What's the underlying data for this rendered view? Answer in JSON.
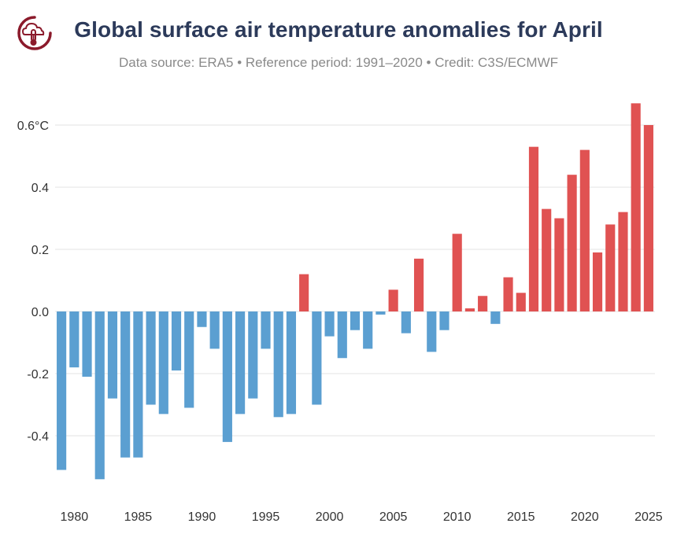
{
  "header": {
    "title": "Global surface air temperature anomalies for April",
    "subtitle": "Data source: ERA5 • Reference period: 1991–2020 • Credit: C3S/ECMWF"
  },
  "colors": {
    "positive": "#e05252",
    "negative": "#5b9fd1",
    "title": "#2c3a5a",
    "logo": "#8b1a2b"
  },
  "logo_icon": "cloud-thermometer-icon",
  "chart_data": {
    "type": "bar",
    "title": "Global surface air temperature anomalies for April",
    "xlabel": "",
    "ylabel": "",
    "ylim": [
      -0.6,
      0.7
    ],
    "yticks": [
      -0.4,
      -0.2,
      0.0,
      0.2,
      0.4,
      0.6
    ],
    "ytick_labels": [
      "-0.4",
      "-0.2",
      "0.0",
      "0.2",
      "0.4",
      "0.6°C"
    ],
    "xticks": [
      1980,
      1985,
      1990,
      1995,
      2000,
      2005,
      2010,
      2015,
      2020,
      2025
    ],
    "xtick_labels": [
      "1980",
      "1985",
      "1990",
      "1995",
      "2000",
      "2005",
      "2010",
      "2015",
      "2020",
      "2025"
    ],
    "grid": true,
    "categories": [
      1979,
      1980,
      1981,
      1982,
      1983,
      1984,
      1985,
      1986,
      1987,
      1988,
      1989,
      1990,
      1991,
      1992,
      1993,
      1994,
      1995,
      1996,
      1997,
      1998,
      1999,
      2000,
      2001,
      2002,
      2003,
      2004,
      2005,
      2006,
      2007,
      2008,
      2009,
      2010,
      2011,
      2012,
      2013,
      2014,
      2015,
      2016,
      2017,
      2018,
      2019,
      2020,
      2021,
      2022,
      2023,
      2024,
      2025
    ],
    "values": [
      -0.51,
      -0.18,
      -0.21,
      -0.54,
      -0.28,
      -0.47,
      -0.47,
      -0.3,
      -0.33,
      -0.19,
      -0.31,
      -0.05,
      -0.12,
      -0.42,
      -0.33,
      -0.28,
      -0.12,
      -0.34,
      -0.33,
      0.12,
      -0.3,
      -0.08,
      -0.15,
      -0.06,
      -0.12,
      -0.01,
      0.07,
      -0.07,
      0.17,
      -0.13,
      -0.06,
      0.25,
      0.01,
      0.05,
      -0.04,
      0.11,
      0.06,
      0.53,
      0.33,
      0.3,
      0.44,
      0.52,
      0.19,
      0.28,
      0.32,
      0.67,
      0.6
    ]
  }
}
